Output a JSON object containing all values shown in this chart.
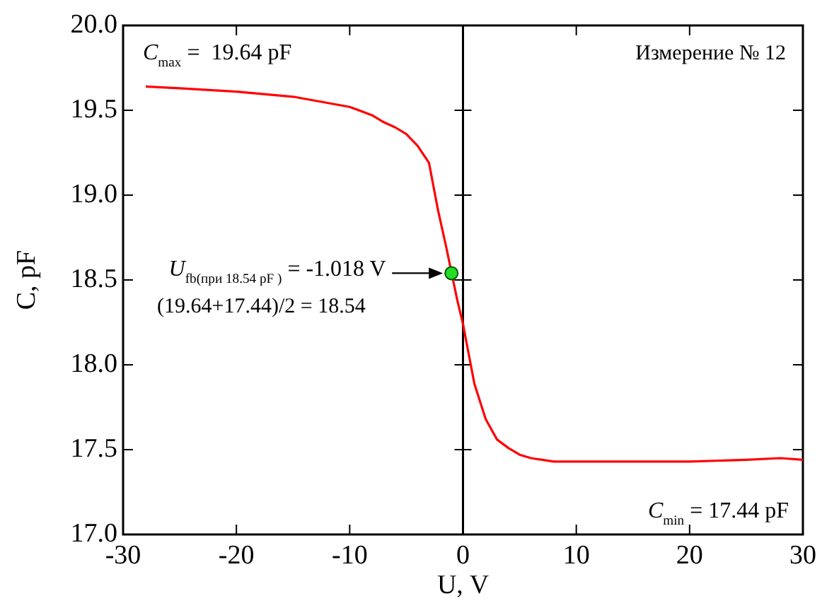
{
  "chart_data": {
    "type": "line",
    "xlabel": "U, V",
    "ylabel": "C, pF",
    "xlim": [
      -30,
      30
    ],
    "xticks": [
      -30,
      -20,
      -10,
      0,
      10,
      20,
      30
    ],
    "ylim": [
      17,
      20
    ],
    "yticks": [
      {
        "value": 17,
        "label": "17.0"
      },
      {
        "value": 17.5,
        "label": "17.5"
      },
      {
        "value": 18,
        "label": "18.0"
      },
      {
        "value": 18.5,
        "label": "18.5"
      },
      {
        "value": 19,
        "label": "19.0"
      },
      {
        "value": 19.5,
        "label": "19.5"
      },
      {
        "value": 20,
        "label": "20.0"
      }
    ],
    "grid": false,
    "legend": false,
    "ref_lines": [
      {
        "axis": "x",
        "value": 0,
        "color": "#000000"
      }
    ],
    "series": [
      {
        "type": "line",
        "color": "#ff0000",
        "marker": "none",
        "line_style": "solid",
        "x": [
          -28,
          -25,
          -20,
          -15,
          -10,
          -8,
          -7,
          -6,
          -5,
          -4,
          -3,
          -2.2,
          -1.5,
          -0.5,
          0,
          1,
          2,
          3,
          4,
          5,
          6,
          8,
          10,
          15,
          20,
          25,
          28,
          30
        ],
        "values": [
          19.64,
          19.63,
          19.61,
          19.58,
          19.52,
          19.47,
          19.43,
          19.4,
          19.36,
          19.29,
          19.19,
          18.91,
          18.7,
          18.38,
          18.24,
          17.89,
          17.68,
          17.56,
          17.51,
          17.47,
          17.45,
          17.43,
          17.43,
          17.43,
          17.43,
          17.44,
          17.45,
          17.44
        ]
      },
      {
        "type": "scatter",
        "color": "#22dd22",
        "marker": "circle",
        "x": [
          -1.018
        ],
        "values": [
          18.54
        ]
      }
    ],
    "annotations": [
      "C$_{max}$ =  19.64 pF",
      "Измерение № 12",
      {
        "text": "U$_{fb(при 18.54 pF )}$ = -1.018 V",
        "x": -1.018,
        "y": 18.54
      },
      "(19.64+17.44)/2 = 18.54",
      "C$_{min}$ = 17.44 pF"
    ]
  }
}
